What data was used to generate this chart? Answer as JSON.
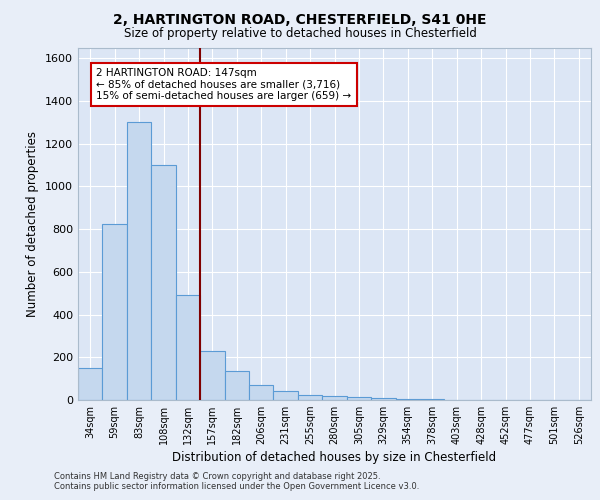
{
  "title_line1": "2, HARTINGTON ROAD, CHESTERFIELD, S41 0HE",
  "title_line2": "Size of property relative to detached houses in Chesterfield",
  "xlabel": "Distribution of detached houses by size in Chesterfield",
  "ylabel": "Number of detached properties",
  "bar_color": "#c5d8ee",
  "bar_edge_color": "#5b9bd5",
  "background_color": "#dce6f5",
  "grid_color": "#ffffff",
  "fig_background": "#e8eef8",
  "categories": [
    "34sqm",
    "59sqm",
    "83sqm",
    "108sqm",
    "132sqm",
    "157sqm",
    "182sqm",
    "206sqm",
    "231sqm",
    "255sqm",
    "280sqm",
    "305sqm",
    "329sqm",
    "354sqm",
    "378sqm",
    "403sqm",
    "428sqm",
    "452sqm",
    "477sqm",
    "501sqm",
    "526sqm"
  ],
  "values": [
    150,
    825,
    1300,
    1100,
    490,
    230,
    135,
    70,
    42,
    25,
    18,
    12,
    8,
    5,
    3,
    2,
    1,
    0,
    0,
    0,
    0
  ],
  "vline_color": "#800000",
  "annotation_text": "2 HARTINGTON ROAD: 147sqm\n← 85% of detached houses are smaller (3,716)\n15% of semi-detached houses are larger (659) →",
  "annotation_box_color": "#ffffff",
  "annotation_box_edge": "#cc0000",
  "ylim": [
    0,
    1650
  ],
  "yticks": [
    0,
    200,
    400,
    600,
    800,
    1000,
    1200,
    1400,
    1600
  ],
  "footer_line1": "Contains HM Land Registry data © Crown copyright and database right 2025.",
  "footer_line2": "Contains public sector information licensed under the Open Government Licence v3.0."
}
